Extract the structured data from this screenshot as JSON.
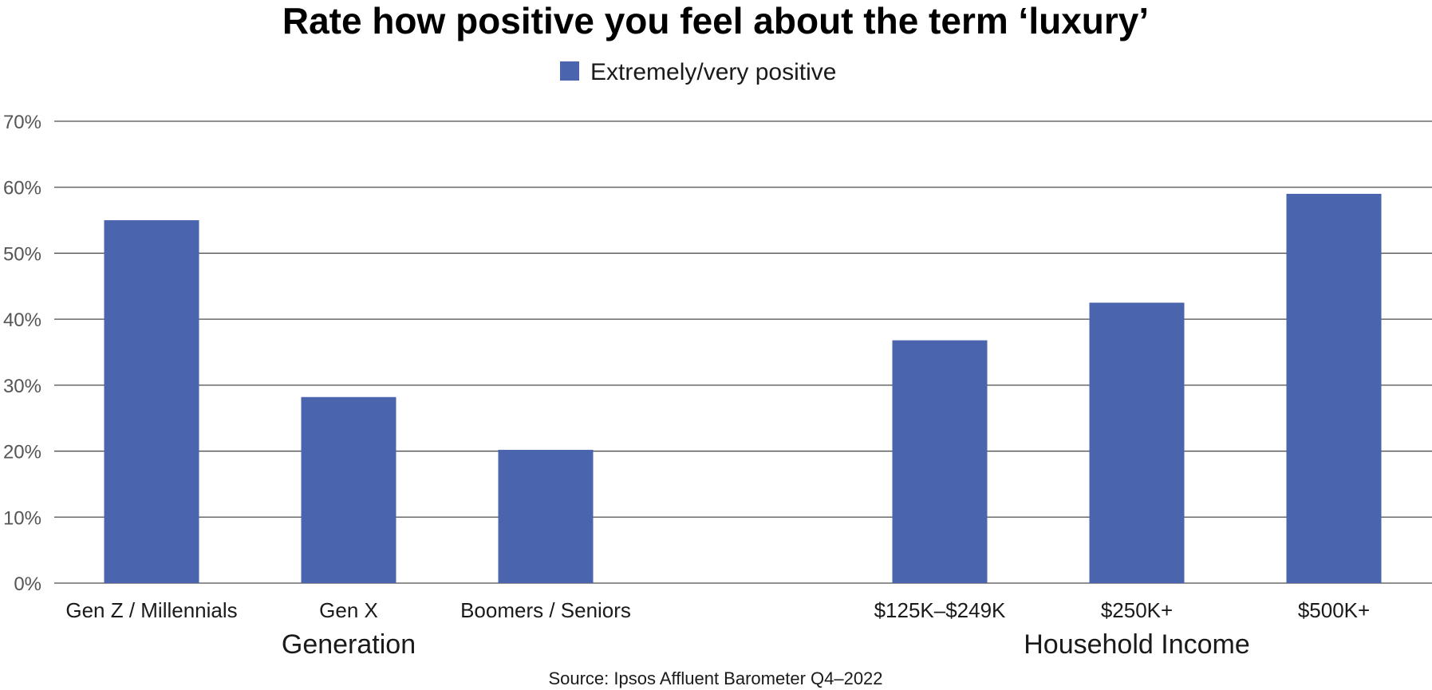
{
  "chart_data": {
    "type": "bar",
    "title": "Rate how positive you feel about the term ‘luxury’",
    "legend": {
      "position": "top-center"
    },
    "series": [
      {
        "name": "Extremely/very positive",
        "color": "#4a65ae",
        "values": [
          55,
          28.2,
          20.2,
          36.8,
          42.5,
          59
        ]
      }
    ],
    "categories": [
      "Gen Z / Millennials",
      "Gen X",
      "Boomers / Seniors",
      "$125K–$249K",
      "$250K+",
      "$500K+"
    ],
    "category_groups": [
      {
        "label": "Generation",
        "categories": [
          0,
          1,
          2
        ]
      },
      {
        "label": "Household Income",
        "categories": [
          3,
          4,
          5
        ]
      }
    ],
    "y_ticks": [
      "0%",
      "10%",
      "20%",
      "30%",
      "40%",
      "50%",
      "60%",
      "70%"
    ],
    "ylim": [
      0,
      70
    ],
    "grid": true,
    "xlabel": "",
    "ylabel": "",
    "source": "Source: Ipsos Affluent Barometer Q4–2022"
  }
}
